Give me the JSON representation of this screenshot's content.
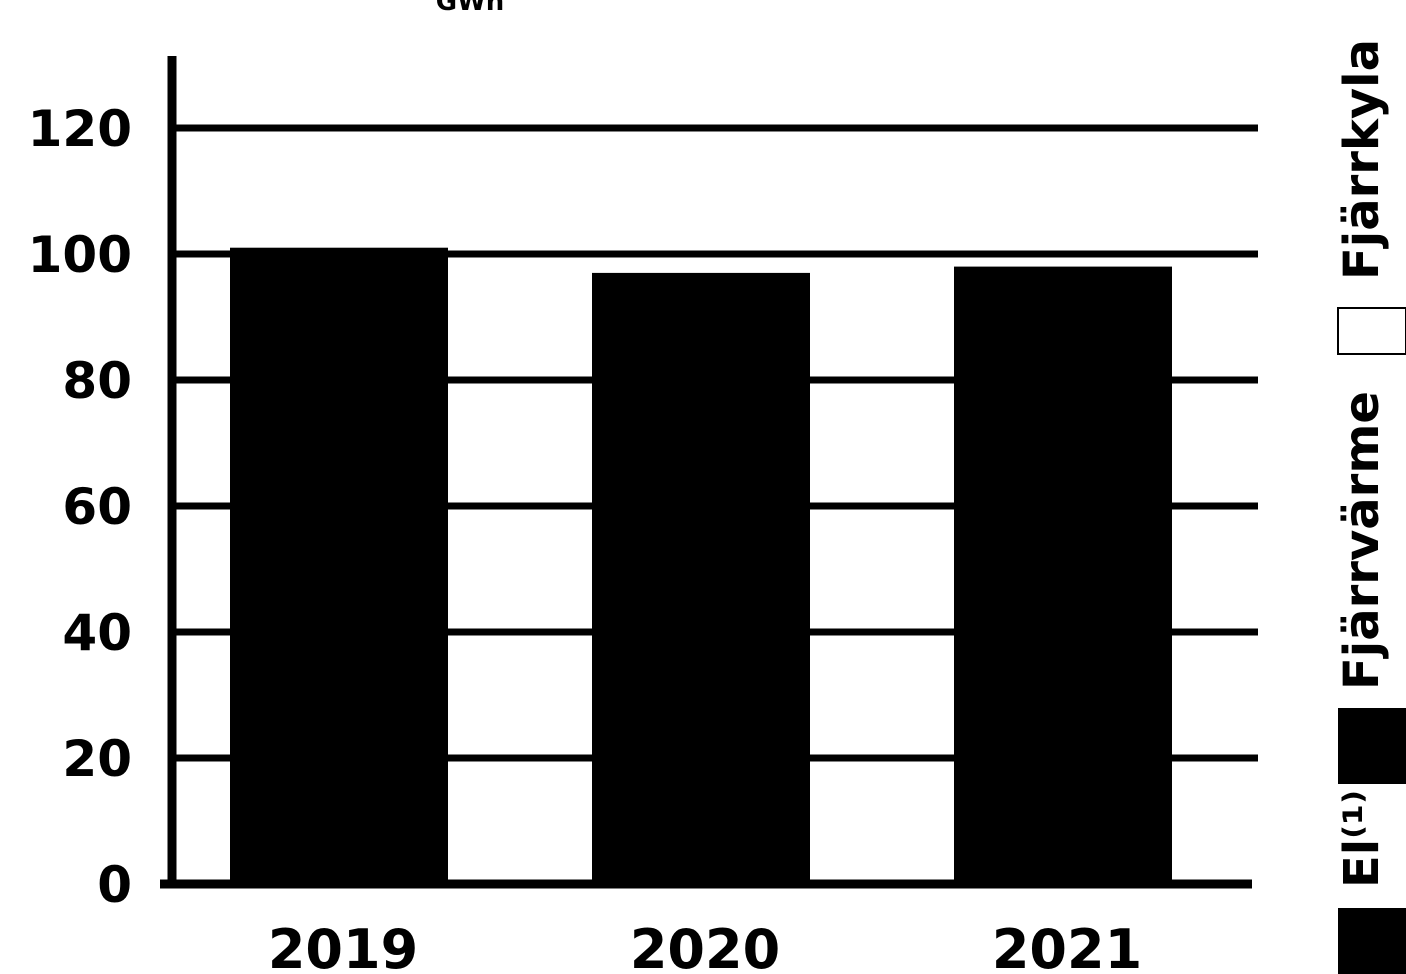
{
  "chart_data": {
    "type": "bar",
    "title": "",
    "unit_label": "GWh",
    "categories": [
      "2019",
      "2020",
      "2021"
    ],
    "series": [
      {
        "name": "Fjärrvärme",
        "values": [
          101,
          97,
          98
        ]
      }
    ],
    "ylim": [
      0,
      120
    ],
    "yticks": [
      0,
      20,
      40,
      60,
      80,
      100,
      120
    ],
    "grid": true,
    "legend": {
      "placement": "right",
      "orientation": "vertical",
      "entries": [
        {
          "label": "El⁽¹⁾",
          "color": "#000000"
        },
        {
          "label": "Fjärrvärme",
          "color": "#000000"
        },
        {
          "label": "Fjärrkyla",
          "color": "#ffffff"
        }
      ]
    },
    "bar_color": "#000000",
    "grid_color": "#000000"
  }
}
